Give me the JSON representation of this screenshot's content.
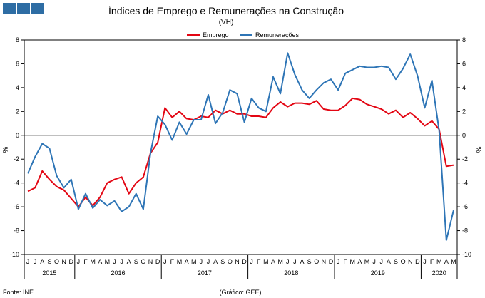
{
  "header": {
    "logo_boxes": [
      "#2e6da4",
      "#2e6da4",
      "#2e6da4"
    ]
  },
  "chart_data": {
    "type": "line",
    "title": "Índices de Emprego  e Remunerações na Construção",
    "subtitle": "(VH)",
    "ylabel_left": "%",
    "ylabel_right": "%",
    "ylim": [
      -10,
      8
    ],
    "yticks": [
      -10,
      -8,
      -6,
      -4,
      -2,
      0,
      2,
      4,
      6,
      8
    ],
    "grid": false,
    "legend_position": "top-center",
    "month_labels": [
      "J",
      "J",
      "A",
      "S",
      "O",
      "N",
      "D",
      "J",
      "F",
      "M",
      "A",
      "M",
      "J",
      "J",
      "A",
      "S",
      "O",
      "N",
      "D",
      "J",
      "F",
      "M",
      "A",
      "M",
      "J",
      "J",
      "A",
      "S",
      "O",
      "N",
      "D",
      "J",
      "F",
      "M",
      "A",
      "M",
      "J",
      "J",
      "A",
      "S",
      "O",
      "N",
      "D",
      "J",
      "F",
      "M",
      "A",
      "M",
      "J",
      "J",
      "A",
      "S",
      "O",
      "N",
      "D",
      "J",
      "F",
      "M",
      "A",
      "M"
    ],
    "year_groups": [
      {
        "label": "2015",
        "start": 0,
        "count": 7
      },
      {
        "label": "2016",
        "start": 7,
        "count": 12
      },
      {
        "label": "2017",
        "start": 19,
        "count": 12
      },
      {
        "label": "2018",
        "start": 31,
        "count": 12
      },
      {
        "label": "2019",
        "start": 43,
        "count": 12
      },
      {
        "label": "2020",
        "start": 55,
        "count": 5
      }
    ],
    "series": [
      {
        "name": "Emprego",
        "color": "#e30613",
        "values": [
          -4.7,
          -4.4,
          -3.0,
          -3.7,
          -4.3,
          -4.6,
          -5.3,
          -6.0,
          -5.2,
          -5.9,
          -5.2,
          -4.0,
          -3.7,
          -3.5,
          -4.9,
          -4.0,
          -3.5,
          -1.5,
          -0.6,
          2.3,
          1.5,
          2.0,
          1.4,
          1.3,
          1.6,
          1.5,
          2.1,
          1.8,
          2.1,
          1.8,
          1.8,
          1.6,
          1.6,
          1.5,
          2.3,
          2.8,
          2.4,
          2.7,
          2.7,
          2.6,
          2.9,
          2.2,
          2.1,
          2.1,
          2.5,
          3.1,
          3.0,
          2.6,
          2.4,
          2.2,
          1.8,
          2.1,
          1.5,
          1.9,
          1.4,
          0.8,
          1.2,
          0.5,
          -2.6,
          -2.5
        ]
      },
      {
        "name": "Remunerações",
        "color": "#2e75b6",
        "values": [
          -3.2,
          -1.8,
          -0.7,
          -1.1,
          -3.4,
          -4.4,
          -3.7,
          -6.2,
          -4.9,
          -6.1,
          -5.4,
          -5.9,
          -5.5,
          -6.4,
          -6.0,
          -4.9,
          -6.2,
          -1.5,
          1.6,
          0.9,
          -0.4,
          1.1,
          0.1,
          1.3,
          1.3,
          3.4,
          1.0,
          1.9,
          3.8,
          3.5,
          1.1,
          3.1,
          2.3,
          2.0,
          4.9,
          3.5,
          6.9,
          5.1,
          3.8,
          3.1,
          3.8,
          4.4,
          4.7,
          3.8,
          5.2,
          5.5,
          5.8,
          5.7,
          5.7,
          5.8,
          5.7,
          4.7,
          5.6,
          6.8,
          5.0,
          2.3,
          4.6,
          0.4,
          -8.8,
          -6.3
        ]
      }
    ]
  },
  "footer": {
    "source": "Fonte: INE",
    "credit": "(Gráfico: GEE)"
  }
}
